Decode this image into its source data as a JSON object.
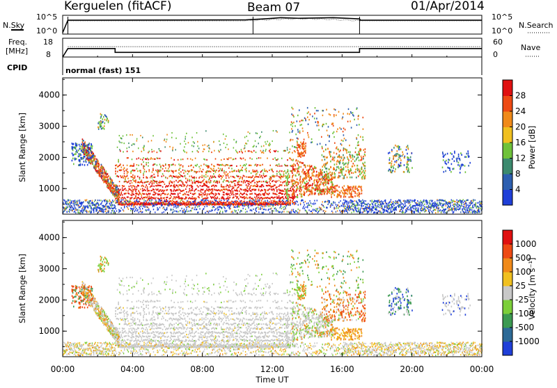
{
  "header": {
    "station": "Kerguelen (fitACF)",
    "beam": "Beam 07",
    "date": "01/Apr/2014"
  },
  "status_panels": {
    "noise": {
      "left_label": "N.Sky",
      "right_label": "N.Search",
      "left_ticks": [
        "10^5",
        "10^0"
      ],
      "right_ticks": [
        "10^5",
        "10^0"
      ],
      "step_times_hr": [
        0.3,
        10.9,
        17.0
      ],
      "sky_profile": [
        {
          "t": 0.0,
          "v": 0.0
        },
        {
          "t": 0.3,
          "v": 0.78
        },
        {
          "t": 10.5,
          "v": 0.8
        },
        {
          "t": 11.5,
          "v": 0.86
        },
        {
          "t": 12.5,
          "v": 0.94
        },
        {
          "t": 13.5,
          "v": 0.9
        },
        {
          "t": 15.5,
          "v": 0.94
        },
        {
          "t": 17.0,
          "v": 0.86
        },
        {
          "t": 17.05,
          "v": 0.78
        },
        {
          "t": 24.0,
          "v": 0.78
        }
      ]
    },
    "freq": {
      "left_label": "Freq.",
      "left_unit": "[MHz]",
      "right_label": "Nave",
      "left_ticks": [
        "18",
        "8"
      ],
      "right_ticks": [
        "60",
        "0"
      ],
      "freq_mhz": [
        {
          "t": 0.0,
          "v": 8.0
        },
        {
          "t": 0.3,
          "v": 12.5
        },
        {
          "t": 3.0,
          "v": 12.5
        },
        {
          "t": 3.0,
          "v": 10.5
        },
        {
          "t": 17.0,
          "v": 10.5
        },
        {
          "t": 17.0,
          "v": 12.5
        },
        {
          "t": 24.0,
          "v": 12.5
        }
      ],
      "nave_level": 13.5
    },
    "cpid": {
      "label": "CPID",
      "mode_text": "normal (fast) 151"
    }
  },
  "chart_data": [
    {
      "type": "heatmap",
      "name": "power",
      "ylabel": "Slant Range [km]",
      "ylim": [
        180,
        4550
      ],
      "yticks": [
        "1000",
        "2000",
        "3000",
        "4000"
      ],
      "colorbar_label": "Power [dB]",
      "colorbar_ticks": [
        "4",
        "8",
        "12",
        "16",
        "20",
        "24",
        "28"
      ],
      "colorbar_colors": [
        "#1f3fd8",
        "#2d5fb0",
        "#3c8a6e",
        "#6fc23a",
        "#f0c020",
        "#f08a1a",
        "#ee4a14",
        "#e01010"
      ]
    },
    {
      "type": "heatmap",
      "name": "velocity",
      "ylabel": "Slant Range [km]",
      "xlabel": "Time UT",
      "ylim": [
        180,
        4550
      ],
      "xlim": [
        0,
        24
      ],
      "yticks": [
        "1000",
        "2000",
        "3000",
        "4000"
      ],
      "xticks": [
        "00:00",
        "04:00",
        "08:00",
        "12:00",
        "16:00",
        "20:00",
        "00:00"
      ],
      "colorbar_label": "Velocity [m s⁻¹]",
      "colorbar_ticks": [
        "1000",
        "500",
        "100",
        "25",
        "-25",
        "-100",
        "-500",
        "-1000"
      ],
      "colorbar_colors": [
        "#1f3fd8",
        "#2d6a96",
        "#3c9a52",
        "#7ccf3a",
        "#c8c8c8",
        "#f0c020",
        "#f08a1a",
        "#ee4a14",
        "#e01010"
      ]
    }
  ]
}
